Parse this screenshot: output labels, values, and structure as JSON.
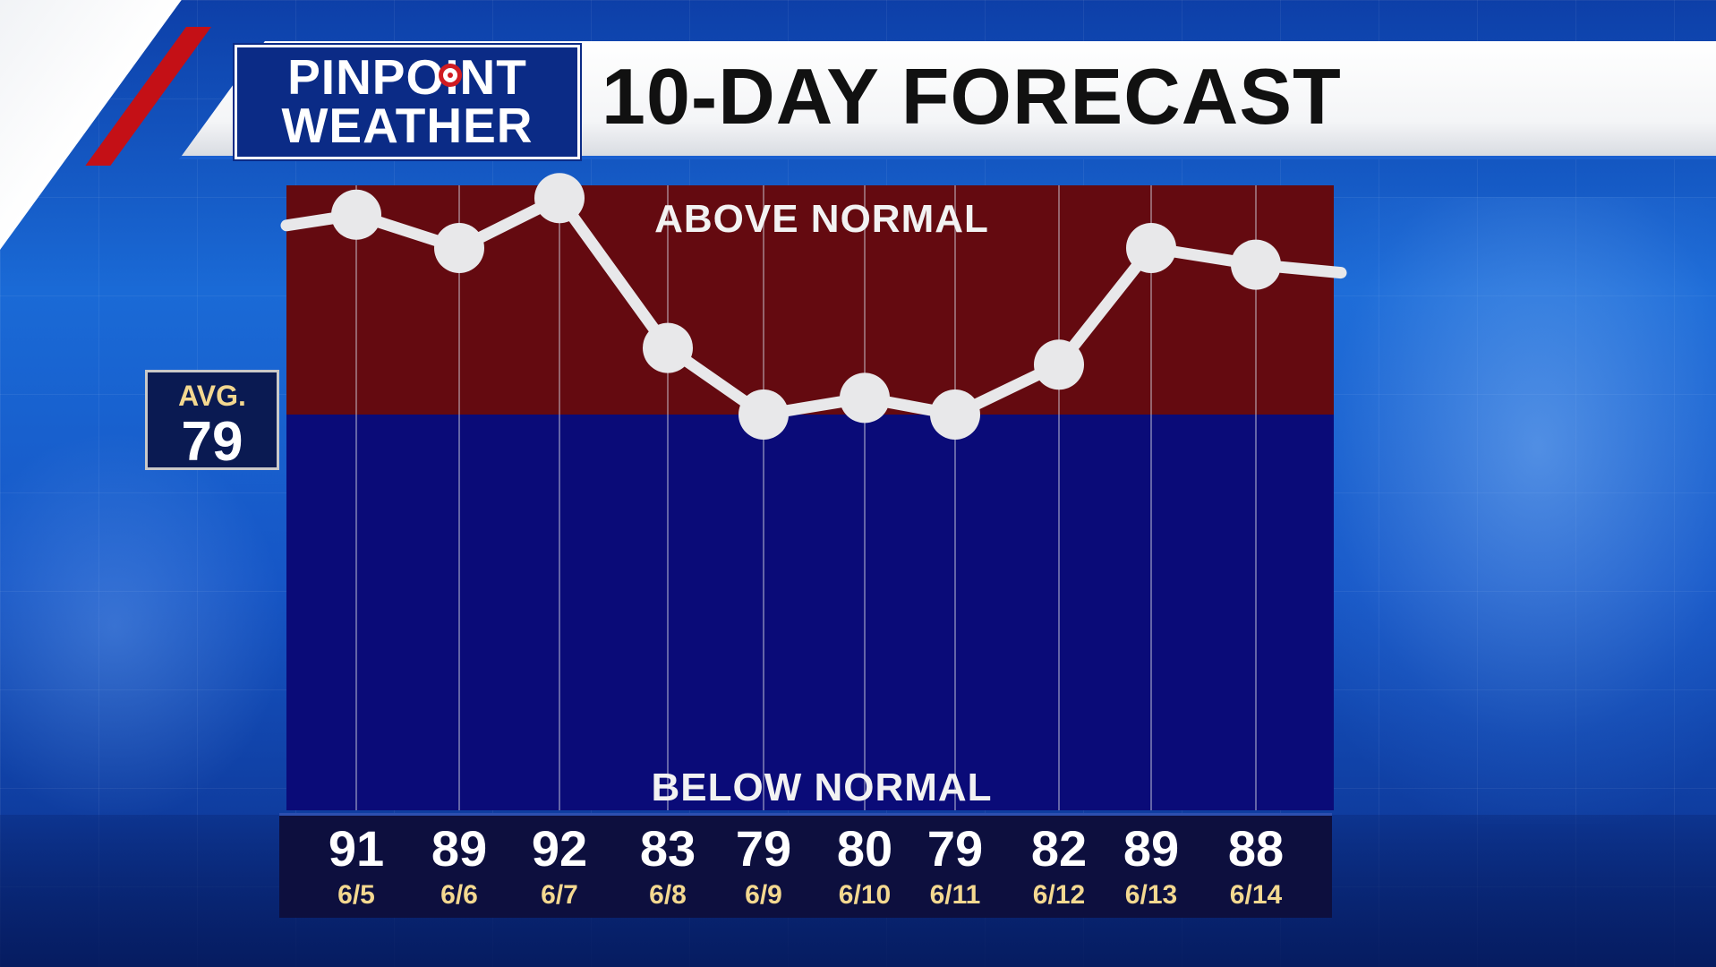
{
  "brand": {
    "line1": "PINPOINT",
    "line2": "WEATHER"
  },
  "header": {
    "title": "10-DAY FORECAST"
  },
  "average": {
    "label": "AVG.",
    "value": 79
  },
  "chart_data": {
    "type": "line",
    "title": "10-DAY FORECAST",
    "categories": [
      "6/5",
      "6/6",
      "6/7",
      "6/8",
      "6/9",
      "6/10",
      "6/11",
      "6/12",
      "6/13",
      "6/14"
    ],
    "values": [
      91,
      89,
      92,
      83,
      79,
      80,
      79,
      82,
      89,
      88
    ],
    "baseline": 79,
    "annotations": {
      "above": "ABOVE NORMAL",
      "below": "BELOW NORMAL"
    },
    "colors": {
      "above": "#640a10",
      "below": "#0a0b78",
      "line": "#e8e8ea"
    },
    "xlabel": "",
    "ylabel": ""
  }
}
